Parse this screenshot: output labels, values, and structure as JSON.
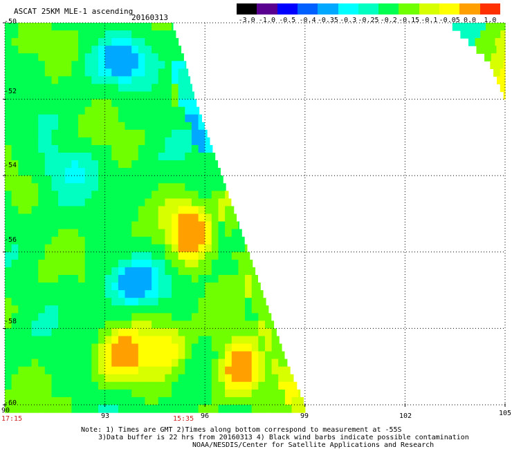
{
  "header": {
    "product": "ASCAT 25KM MLE-1 ascending",
    "date": "20160313"
  },
  "colorbar": {
    "labels": [
      "-3.0",
      "-1.0",
      "-0.5",
      "-0.4",
      "-0.35",
      "-0.3",
      "-0.25",
      "-0.2",
      "-0.15",
      "-0.1",
      "-0.05",
      "0.0",
      "1.0"
    ],
    "colors": [
      "#000000",
      "#5a0090",
      "#0000ff",
      "#0060ff",
      "#00a8ff",
      "#00ffff",
      "#00ffc0",
      "#00ff50",
      "#70ff00",
      "#d8ff00",
      "#ffff00",
      "#ffa000",
      "#ff3000"
    ]
  },
  "map": {
    "lon_range": [
      90,
      105
    ],
    "lat_range": [
      -60,
      -50
    ],
    "lon_ticks": [
      "90",
      "93",
      "96",
      "99",
      "102",
      "105"
    ],
    "lat_ticks": [
      "-50",
      "-52",
      "-54",
      "-56",
      "-58",
      "-60"
    ],
    "grid": "dotted",
    "swath_edge": [
      [
        -50,
        95.0
      ],
      [
        -51,
        95.4
      ],
      [
        -52,
        95.7
      ],
      [
        -53,
        96.1
      ],
      [
        -54,
        96.5
      ],
      [
        -55,
        96.9
      ],
      [
        -56,
        97.3
      ],
      [
        -57,
        97.7
      ],
      [
        -58,
        98.1
      ],
      [
        -59,
        98.5
      ],
      [
        -60,
        99.0
      ]
    ],
    "corner_swath": [
      [
        -50,
        103.3
      ],
      [
        -51,
        104.5
      ],
      [
        -52,
        105
      ]
    ],
    "warm_regions": [
      {
        "lat": -55.5,
        "lon": 95.6,
        "level": "0.0"
      },
      {
        "lat": -58.8,
        "lon": 93.5,
        "level": "-0.05"
      },
      {
        "lat": -59.0,
        "lon": 97.0,
        "level": "0.0"
      },
      {
        "lat": -58.5,
        "lon": 94.8,
        "level": "-0.05"
      }
    ],
    "cool_regions": [
      {
        "lat": -51.0,
        "lon": 93.5,
        "level": "-0.3"
      },
      {
        "lat": -56.8,
        "lon": 93.9,
        "level": "-0.3"
      },
      {
        "lat": -53.8,
        "lon": 91.8,
        "level": "-0.25"
      }
    ]
  },
  "times": {
    "left": "17:15",
    "middle": "15:35"
  },
  "notes": {
    "line1": "Note: 1) Times are GMT 2)Times along bottom correspond to measurement at -55S",
    "line2": "3)Data buffer is 22 hrs from 20160313 4) Black wind barbs indicate possible contamination",
    "line3": "NOAA/NESDIS/Center for Satellite Applications and Research"
  }
}
